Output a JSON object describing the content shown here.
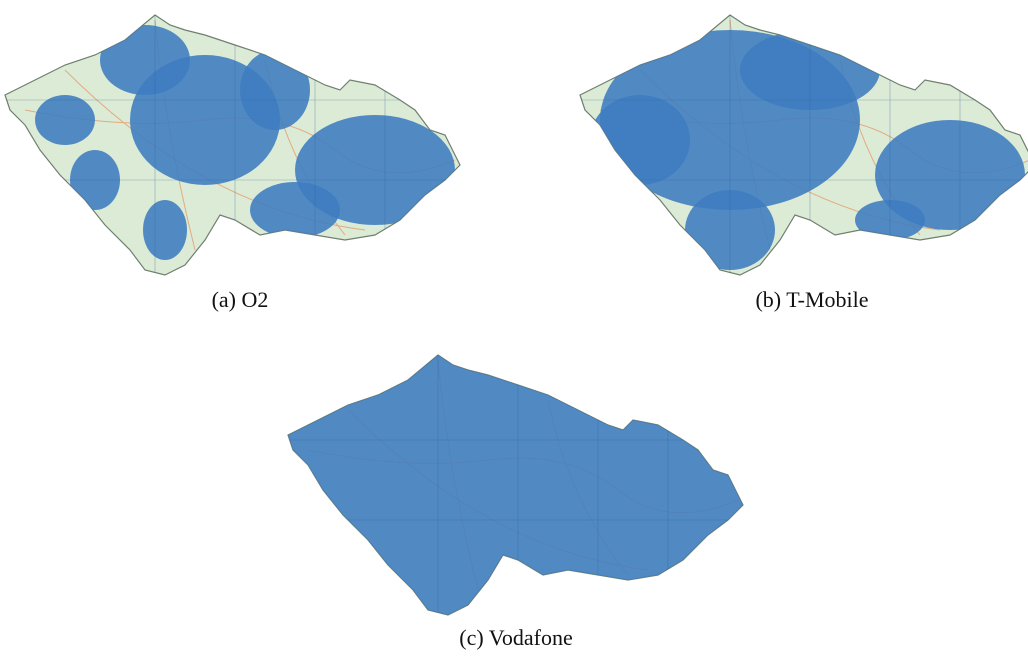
{
  "figures": [
    {
      "caption": "(a) O2"
    },
    {
      "caption": "(b) T-Mobile"
    },
    {
      "caption": "(c) Vodafone"
    }
  ]
}
